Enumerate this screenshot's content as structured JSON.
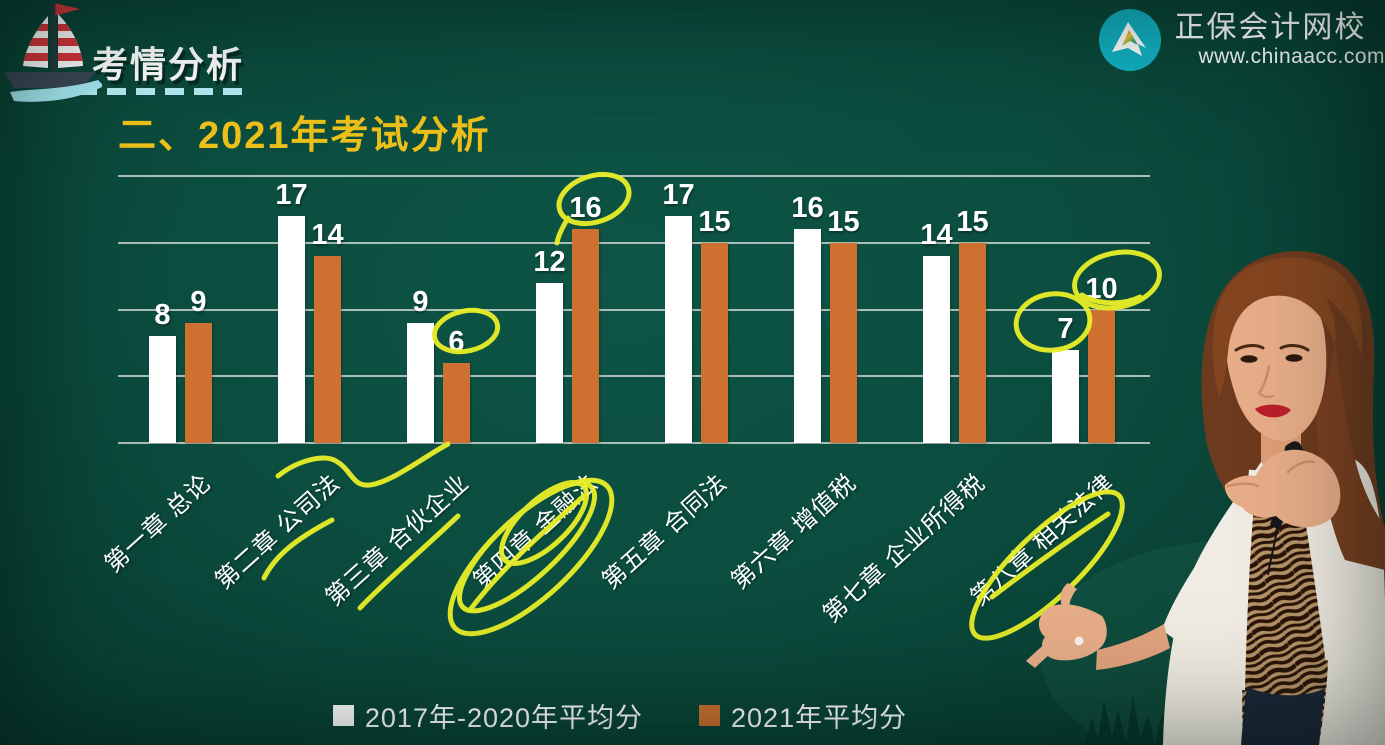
{
  "header": {
    "badge": "考情分析"
  },
  "brand": {
    "name": "正保会计网校",
    "url": "www.chinaacc.com"
  },
  "slide": {
    "title": "二、2021年考试分析"
  },
  "chart_data": {
    "type": "bar",
    "title": "2021年考试分析",
    "categories": [
      "第一章 总论",
      "第二章 公司法",
      "第三章 合伙企业",
      "第四章 金融法",
      "第五章 合同法",
      "第六章 增值税",
      "第七章 企业所得税",
      "第八章 相关法律"
    ],
    "series": [
      {
        "name": "2017年-2020年平均分",
        "color": "#ffffff",
        "values": [
          8,
          17,
          9,
          12,
          17,
          16,
          14,
          7
        ]
      },
      {
        "name": "2021年平均分",
        "color": "#ce7130",
        "values": [
          9,
          14,
          6,
          16,
          15,
          15,
          15,
          10
        ]
      }
    ],
    "ylim": [
      0,
      20
    ],
    "grid_step": 5,
    "grid": true,
    "legend_position": "bottom",
    "value_labels": true,
    "annotations": {
      "color": "#e9ef28",
      "circled_values": [
        {
          "category": "第三章 合伙企业",
          "series": "2021年平均分",
          "value": 6
        },
        {
          "category": "第四章 金融法",
          "series": "2021年平均分",
          "value": 16
        },
        {
          "category": "第八章 相关法律",
          "series": "2017年-2020年平均分",
          "value": 7
        },
        {
          "category": "第八章 相关法律",
          "series": "2021年平均分",
          "value": 10
        }
      ],
      "circled_categories": [
        "第四章 金融法",
        "第八章 相关法律"
      ],
      "squiggle_categories": [
        "第二章 公司法",
        "第三章 合伙企业"
      ]
    }
  },
  "colors": {
    "background": "#0b4c3e",
    "grid": "#c7d1ce",
    "title": "#eec01a",
    "bar_2017_2020": "#ffffff",
    "bar_2021": "#ce7130",
    "annotation": "#e9ef28",
    "logo_circle": "#12b1c3",
    "dash_line": "#b5ecf4"
  }
}
